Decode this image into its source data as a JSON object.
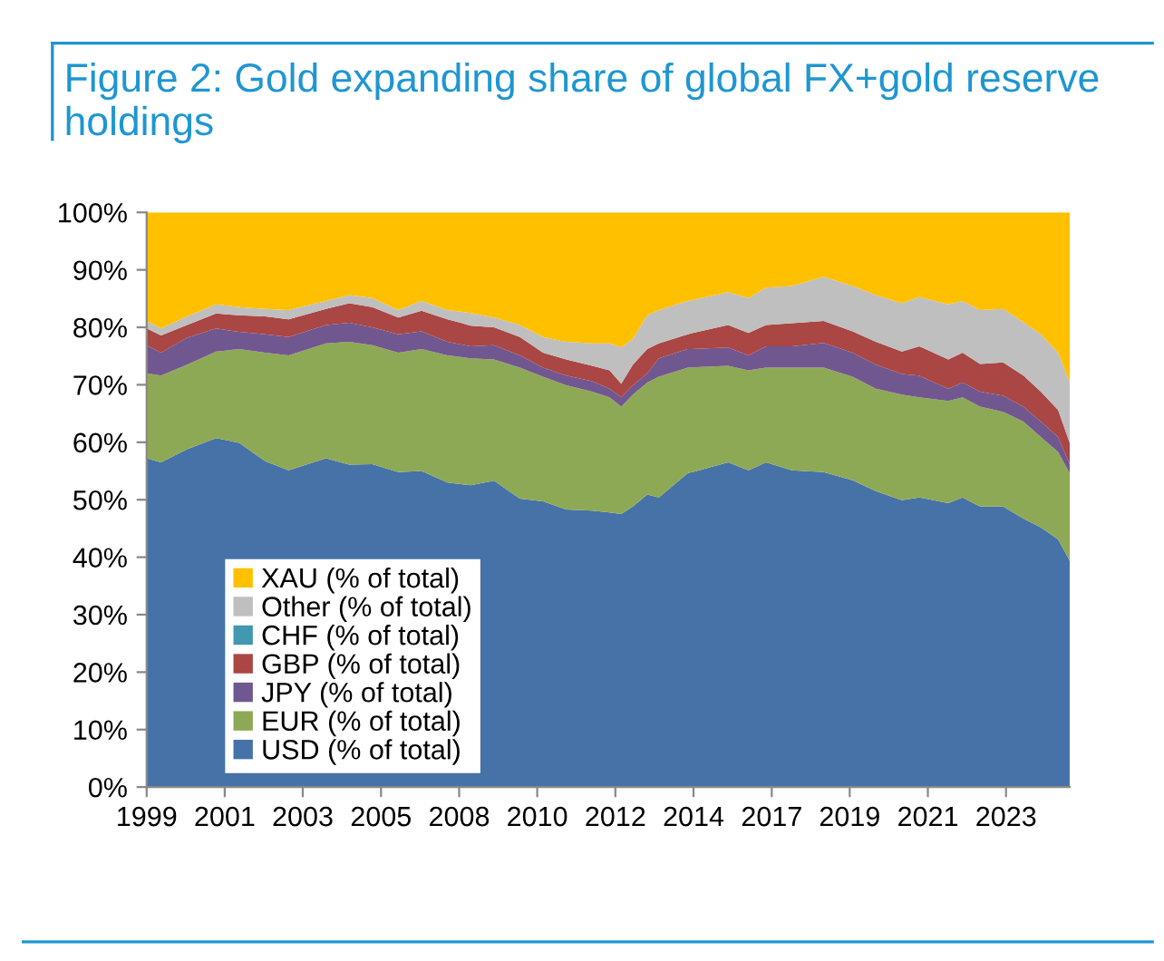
{
  "chart_data": {
    "type": "area",
    "stacked": true,
    "title": "Figure 2: Gold expanding share of global FX+gold reserve holdings",
    "x": [
      "1999-01",
      "1999-06",
      "2000-03",
      "2001-01",
      "2001-09",
      "2002-06",
      "2003-02",
      "2004-03",
      "2004-11",
      "2005-07",
      "2006-04",
      "2006-12",
      "2007-09",
      "2008-05",
      "2009-01",
      "2009-10",
      "2010-06",
      "2011-02",
      "2011-11",
      "2012-05",
      "2012-09",
      "2013-01",
      "2013-06",
      "2013-10",
      "2014-08",
      "2015-10",
      "2016-05",
      "2016-11",
      "2017-08",
      "2018-07",
      "2019-05",
      "2020-01",
      "2020-10",
      "2021-04",
      "2022-02",
      "2022-07",
      "2023-01",
      "2023-09",
      "2024-04",
      "2024-10",
      "2025-04",
      "2025-08"
    ],
    "series": [
      {
        "name": "USD (% of total)",
        "color": "#4672a8",
        "values": [
          57.2,
          56.5,
          58.8,
          60.7,
          59.9,
          56.7,
          55.1,
          57.2,
          56.1,
          56.2,
          54.8,
          55.0,
          53.0,
          52.5,
          53.3,
          50.2,
          49.7,
          48.3,
          48.1,
          47.8,
          47.5,
          48.8,
          50.9,
          50.4,
          54.6,
          56.5,
          55.1,
          56.5,
          55.1,
          54.8,
          53.4,
          51.5,
          49.9,
          50.4,
          49.4,
          50.4,
          48.8,
          48.8,
          46.7,
          45.2,
          43.1,
          39.4
        ]
      },
      {
        "name": "EUR (% of total)",
        "color": "#8ea955",
        "values": [
          14.8,
          15.1,
          14.7,
          15.1,
          16.3,
          18.9,
          20.0,
          20.0,
          21.4,
          20.7,
          20.8,
          21.2,
          22.1,
          22.1,
          21.1,
          22.8,
          21.7,
          21.6,
          20.7,
          20.0,
          18.7,
          19.5,
          19.5,
          21.0,
          18.4,
          16.8,
          17.4,
          16.5,
          17.9,
          18.2,
          18.0,
          17.8,
          18.4,
          17.4,
          17.8,
          17.4,
          17.4,
          16.5,
          16.9,
          15.7,
          15.2,
          15.2
        ]
      },
      {
        "name": "JPY (% of total)",
        "color": "#71578f",
        "values": [
          4.9,
          4.0,
          4.7,
          4.0,
          3.0,
          3.2,
          3.2,
          3.2,
          3.3,
          3.1,
          3.2,
          3.1,
          2.4,
          2.1,
          2.5,
          2.1,
          1.6,
          1.7,
          1.8,
          1.5,
          1.6,
          1.6,
          1.6,
          3.2,
          3.2,
          3.2,
          2.6,
          3.7,
          3.7,
          4.3,
          4.2,
          4.2,
          3.6,
          3.8,
          2.1,
          2.6,
          2.6,
          2.8,
          2.6,
          2.7,
          2.6,
          1.6
        ]
      },
      {
        "name": "GBP (% of total)",
        "color": "#aa4643",
        "values": [
          2.9,
          3.0,
          2.2,
          2.6,
          2.9,
          3.1,
          3.1,
          2.8,
          3.4,
          3.5,
          2.9,
          3.6,
          3.9,
          3.6,
          3.1,
          3.2,
          2.6,
          2.8,
          2.7,
          3.2,
          2.4,
          3.6,
          4.2,
          2.6,
          2.6,
          3.9,
          3.9,
          3.7,
          4.0,
          3.8,
          3.7,
          4.0,
          3.9,
          5.1,
          5.1,
          5.2,
          4.8,
          5.8,
          5.4,
          5.2,
          4.7,
          3.7
        ]
      },
      {
        "name": "CHF (% of total)",
        "color": "#4198af",
        "values": [
          null,
          null,
          null,
          null,
          null,
          null,
          null,
          null,
          null,
          null,
          null,
          null,
          null,
          null,
          null,
          null,
          null,
          null,
          null,
          null,
          null,
          null,
          null,
          null,
          null,
          null,
          null,
          null,
          null,
          null,
          null,
          null,
          null,
          null,
          null,
          null,
          null,
          null,
          null,
          null,
          null,
          null
        ]
      },
      {
        "name": "Other (% of total)",
        "color": "#bfbfbf",
        "values": [
          1.3,
          1.2,
          1.5,
          1.6,
          1.4,
          1.3,
          1.6,
          1.4,
          1.4,
          1.6,
          1.3,
          1.7,
          1.6,
          2.2,
          1.7,
          2.1,
          2.7,
          3.1,
          3.9,
          4.7,
          6.3,
          4.5,
          5.9,
          5.8,
          5.8,
          5.7,
          6.1,
          6.5,
          6.5,
          7.7,
          7.9,
          8.1,
          8.4,
          8.6,
          9.6,
          9.0,
          9.4,
          9.3,
          9.3,
          10.0,
          10.0,
          10.5
        ]
      },
      {
        "name": "XAU (% of total)",
        "color": "#ffc000",
        "values": [
          18.9,
          20.2,
          18.1,
          16.0,
          16.5,
          16.8,
          17.0,
          15.4,
          14.4,
          14.9,
          17.0,
          15.4,
          17.0,
          17.5,
          18.3,
          19.6,
          21.7,
          22.5,
          22.8,
          22.8,
          23.5,
          22.0,
          17.9,
          17.0,
          15.4,
          13.9,
          14.9,
          13.1,
          12.8,
          11.2,
          12.8,
          14.4,
          15.8,
          14.7,
          16.0,
          15.4,
          17.0,
          16.8,
          19.1,
          21.2,
          24.4,
          29.6
        ]
      }
    ],
    "xlim": [
      "1999-01",
      "2025-08"
    ],
    "xticks": [
      {
        "value": "1999-01",
        "label": "1999"
      },
      {
        "value": "2001-04",
        "label": "2001"
      },
      {
        "value": "2003-07",
        "label": "2003"
      },
      {
        "value": "2005-10",
        "label": "2005"
      },
      {
        "value": "2008-01",
        "label": "2008"
      },
      {
        "value": "2010-04",
        "label": "2010"
      },
      {
        "value": "2012-07",
        "label": "2012"
      },
      {
        "value": "2014-10",
        "label": "2014"
      },
      {
        "value": "2017-01",
        "label": "2017"
      },
      {
        "value": "2019-04",
        "label": "2019"
      },
      {
        "value": "2021-07",
        "label": "2021"
      },
      {
        "value": "2023-10",
        "label": "2023"
      }
    ],
    "ylim": [
      0,
      100
    ],
    "yticks": [
      {
        "value": 0,
        "label": "0%"
      },
      {
        "value": 10,
        "label": "10%"
      },
      {
        "value": 20,
        "label": "20%"
      },
      {
        "value": 30,
        "label": "30%"
      },
      {
        "value": 40,
        "label": "40%"
      },
      {
        "value": 50,
        "label": "50%"
      },
      {
        "value": 60,
        "label": "60%"
      },
      {
        "value": 70,
        "label": "70%"
      },
      {
        "value": 80,
        "label": "80%"
      },
      {
        "value": 90,
        "label": "90%"
      },
      {
        "value": 100,
        "label": "100%"
      }
    ],
    "grid": false,
    "legend": "bottom left"
  }
}
